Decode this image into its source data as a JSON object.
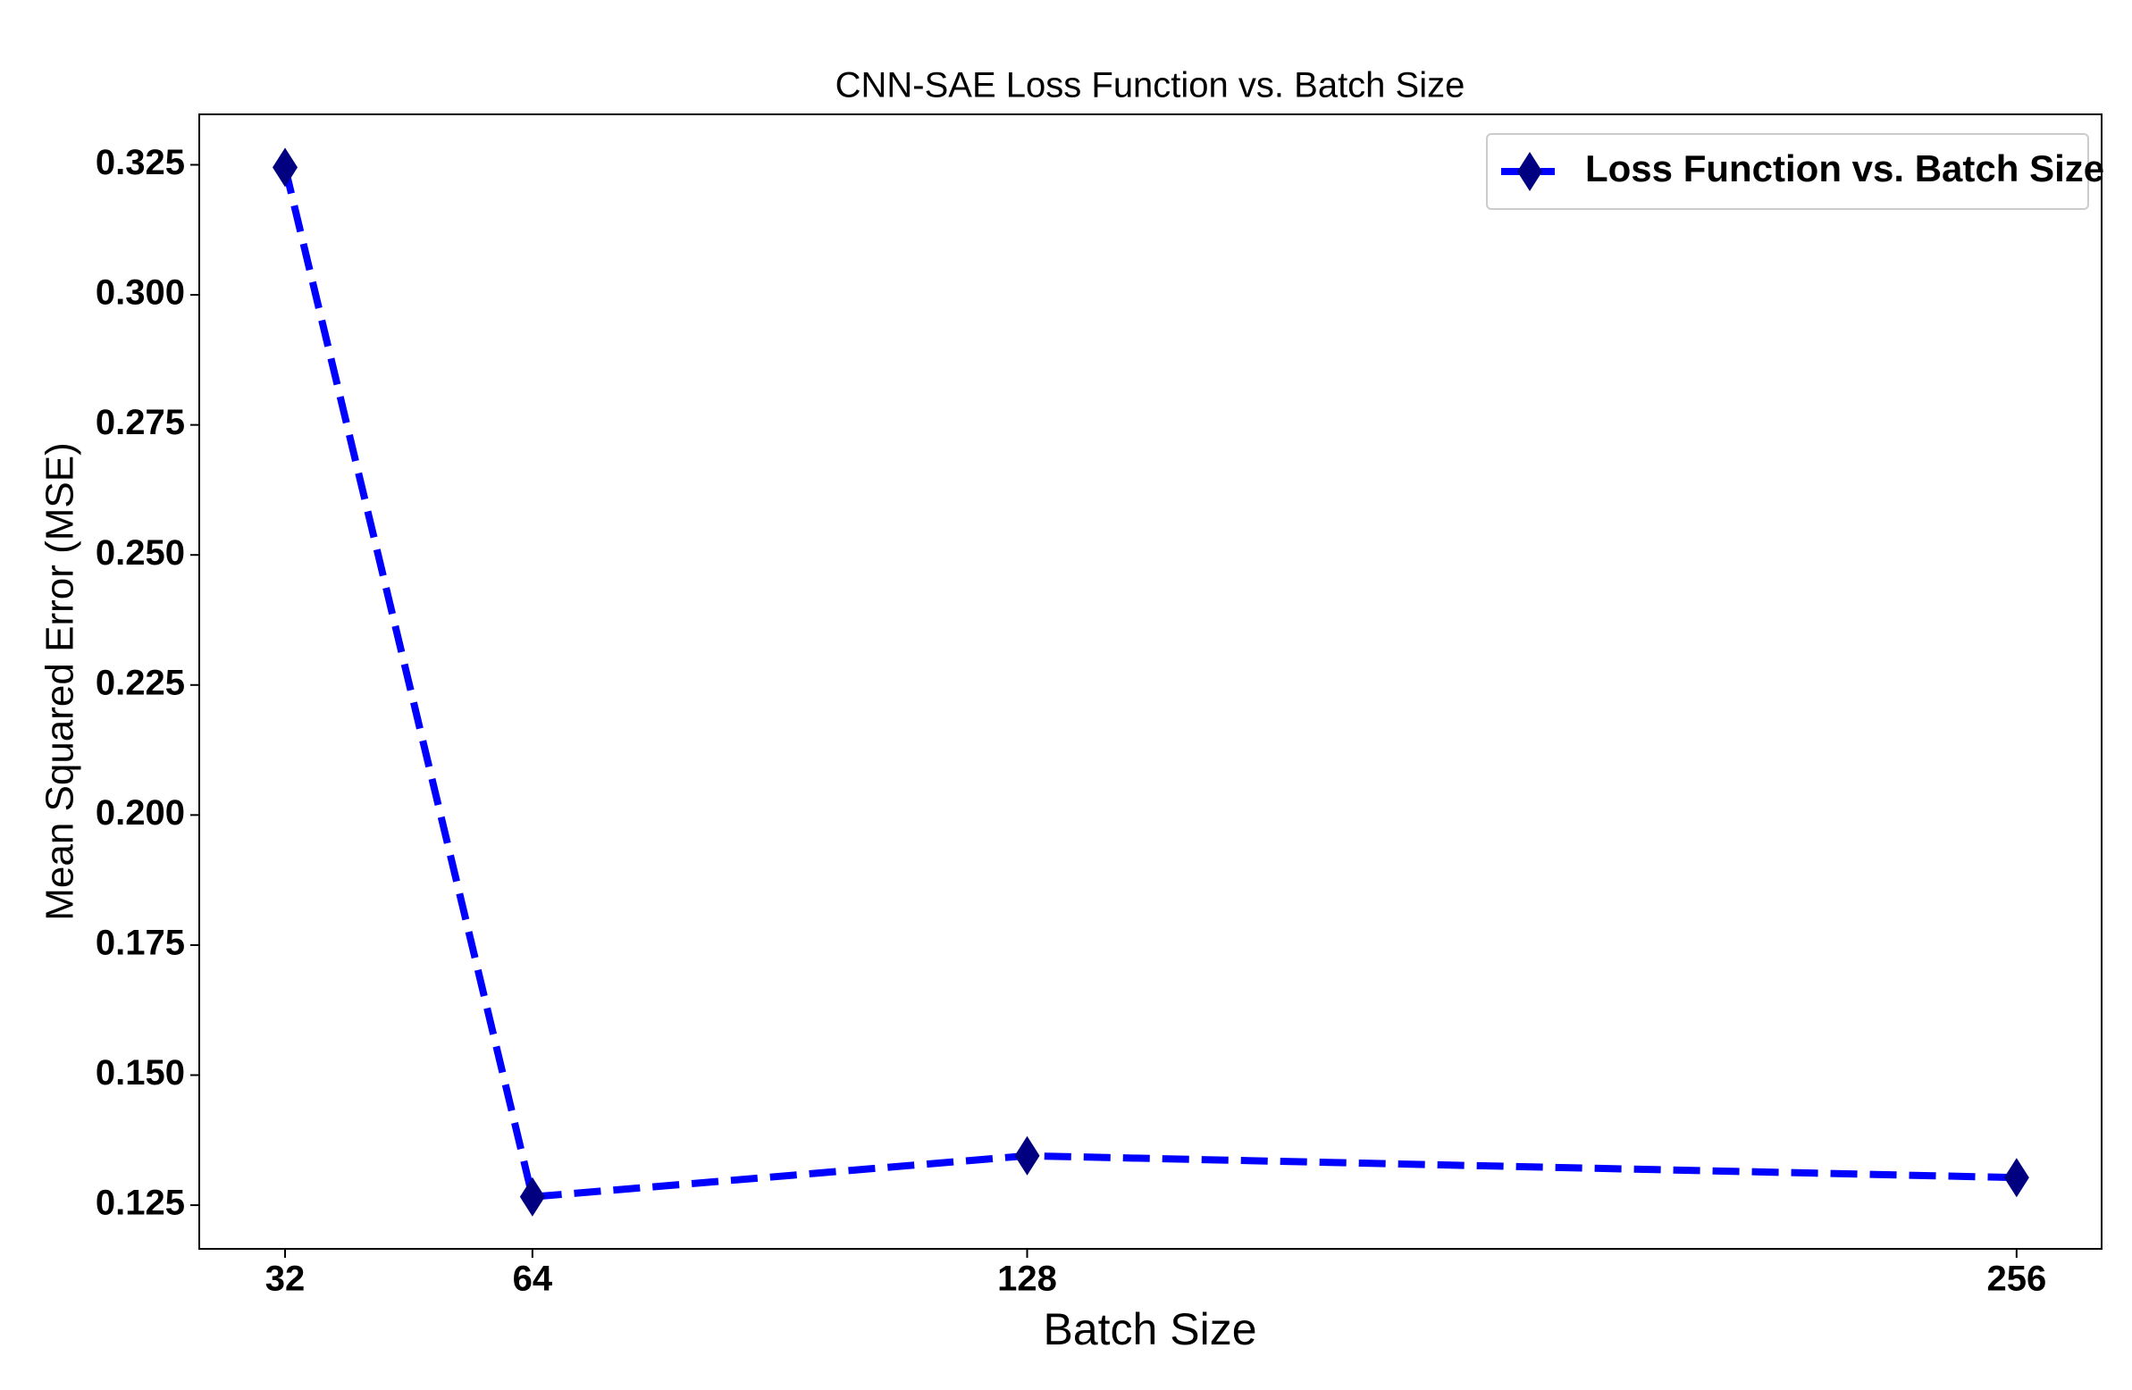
{
  "chart_data": {
    "type": "line",
    "title": "CNN-SAE Loss Function vs. Batch Size",
    "x_label": "Batch Size",
    "y_label": "Mean Squared Error (MSE)",
    "x": [
      32,
      64,
      128,
      256
    ],
    "series": [
      {
        "name": "Loss Function vs. Batch Size",
        "color": "#0000ff",
        "marker_color": "#000080",
        "values": [
          0.3245,
          0.1266,
          0.1345,
          0.1303
        ]
      }
    ],
    "xlim": [
      20.9,
      267
    ],
    "xticks": [
      32,
      64,
      128,
      256
    ],
    "ylim": [
      0.1166,
      0.3347
    ],
    "yticks": [
      0.125,
      {
        "value": 0.15,
        "label": "0.150"
      },
      0.175,
      {
        "value": 0.2,
        "label": "0.200"
      },
      0.225,
      {
        "value": 0.25,
        "label": "0.250"
      },
      0.275,
      {
        "value": 0.3,
        "label": "0.300"
      },
      0.325
    ],
    "grid": false,
    "legend": "upper right"
  }
}
